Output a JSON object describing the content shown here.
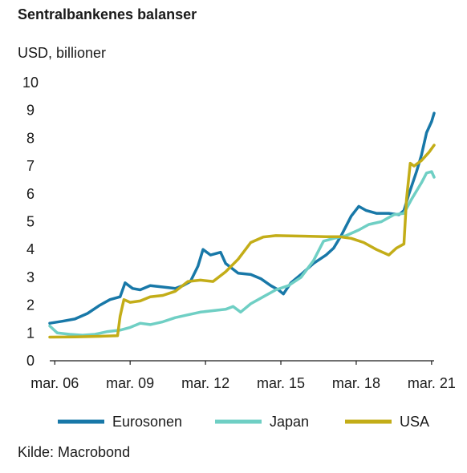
{
  "chart_data": {
    "type": "line",
    "title": "Sentralbankenes balanser",
    "ylabel": "USD, billioner",
    "source": "Kilde: Macrobond",
    "xlim": [
      2006.0,
      2021.3
    ],
    "ylim": [
      0,
      10
    ],
    "y_ticks": [
      0,
      1,
      2,
      3,
      4,
      5,
      6,
      7,
      8,
      9,
      10
    ],
    "x_ticks": [
      {
        "label": "mar. 06",
        "x": 2006.2
      },
      {
        "label": "mar. 09",
        "x": 2009.2
      },
      {
        "label": "mar. 12",
        "x": 2012.2
      },
      {
        "label": "mar. 15",
        "x": 2015.2
      },
      {
        "label": "mar. 18",
        "x": 2018.2
      },
      {
        "label": "mar. 21",
        "x": 2021.2
      }
    ],
    "legend_position": "bottom",
    "series": [
      {
        "name": "Eurosonen",
        "color": "#1878a8",
        "points": [
          [
            2006.0,
            1.35
          ],
          [
            2006.5,
            1.42
          ],
          [
            2007.0,
            1.5
          ],
          [
            2007.5,
            1.7
          ],
          [
            2008.0,
            2.0
          ],
          [
            2008.4,
            2.2
          ],
          [
            2008.8,
            2.3
          ],
          [
            2009.0,
            2.8
          ],
          [
            2009.3,
            2.6
          ],
          [
            2009.6,
            2.55
          ],
          [
            2010.0,
            2.7
          ],
          [
            2010.5,
            2.65
          ],
          [
            2011.0,
            2.6
          ],
          [
            2011.3,
            2.7
          ],
          [
            2011.6,
            2.85
          ],
          [
            2011.9,
            3.4
          ],
          [
            2012.1,
            4.0
          ],
          [
            2012.4,
            3.8
          ],
          [
            2012.8,
            3.9
          ],
          [
            2013.0,
            3.5
          ],
          [
            2013.5,
            3.15
          ],
          [
            2014.0,
            3.1
          ],
          [
            2014.4,
            2.95
          ],
          [
            2014.8,
            2.7
          ],
          [
            2015.1,
            2.55
          ],
          [
            2015.3,
            2.4
          ],
          [
            2015.6,
            2.8
          ],
          [
            2016.0,
            3.1
          ],
          [
            2016.5,
            3.5
          ],
          [
            2017.0,
            3.8
          ],
          [
            2017.3,
            4.05
          ],
          [
            2017.6,
            4.5
          ],
          [
            2018.0,
            5.2
          ],
          [
            2018.3,
            5.55
          ],
          [
            2018.6,
            5.4
          ],
          [
            2019.0,
            5.3
          ],
          [
            2019.5,
            5.3
          ],
          [
            2019.9,
            5.25
          ],
          [
            2020.1,
            5.4
          ],
          [
            2020.3,
            6.0
          ],
          [
            2020.6,
            6.8
          ],
          [
            2020.8,
            7.4
          ],
          [
            2021.0,
            8.2
          ],
          [
            2021.2,
            8.6
          ],
          [
            2021.3,
            8.9
          ]
        ]
      },
      {
        "name": "Japan",
        "color": "#6fcfc4",
        "points": [
          [
            2006.0,
            1.25
          ],
          [
            2006.3,
            1.0
          ],
          [
            2006.8,
            0.95
          ],
          [
            2007.3,
            0.92
          ],
          [
            2007.8,
            0.95
          ],
          [
            2008.3,
            1.05
          ],
          [
            2008.8,
            1.1
          ],
          [
            2009.2,
            1.2
          ],
          [
            2009.6,
            1.35
          ],
          [
            2010.0,
            1.3
          ],
          [
            2010.5,
            1.4
          ],
          [
            2011.0,
            1.55
          ],
          [
            2011.5,
            1.65
          ],
          [
            2012.0,
            1.75
          ],
          [
            2012.5,
            1.8
          ],
          [
            2013.0,
            1.85
          ],
          [
            2013.3,
            1.95
          ],
          [
            2013.6,
            1.75
          ],
          [
            2014.0,
            2.05
          ],
          [
            2014.5,
            2.3
          ],
          [
            2015.0,
            2.55
          ],
          [
            2015.5,
            2.7
          ],
          [
            2016.0,
            3.0
          ],
          [
            2016.5,
            3.6
          ],
          [
            2016.9,
            4.3
          ],
          [
            2017.3,
            4.4
          ],
          [
            2017.8,
            4.5
          ],
          [
            2018.3,
            4.7
          ],
          [
            2018.7,
            4.9
          ],
          [
            2019.2,
            5.0
          ],
          [
            2019.7,
            5.25
          ],
          [
            2020.1,
            5.3
          ],
          [
            2020.4,
            5.8
          ],
          [
            2020.8,
            6.4
          ],
          [
            2021.0,
            6.75
          ],
          [
            2021.2,
            6.8
          ],
          [
            2021.3,
            6.6
          ]
        ]
      },
      {
        "name": "USA",
        "color": "#c3ad18",
        "points": [
          [
            2006.0,
            0.85
          ],
          [
            2007.0,
            0.86
          ],
          [
            2008.0,
            0.88
          ],
          [
            2008.7,
            0.9
          ],
          [
            2008.8,
            1.6
          ],
          [
            2008.95,
            2.2
          ],
          [
            2009.2,
            2.1
          ],
          [
            2009.6,
            2.15
          ],
          [
            2010.0,
            2.3
          ],
          [
            2010.5,
            2.35
          ],
          [
            2011.0,
            2.5
          ],
          [
            2011.5,
            2.85
          ],
          [
            2012.0,
            2.9
          ],
          [
            2012.5,
            2.85
          ],
          [
            2013.0,
            3.2
          ],
          [
            2013.5,
            3.65
          ],
          [
            2014.0,
            4.25
          ],
          [
            2014.5,
            4.45
          ],
          [
            2015.0,
            4.5
          ],
          [
            2016.0,
            4.48
          ],
          [
            2017.0,
            4.46
          ],
          [
            2017.5,
            4.46
          ],
          [
            2018.0,
            4.4
          ],
          [
            2018.5,
            4.25
          ],
          [
            2019.0,
            4.0
          ],
          [
            2019.5,
            3.8
          ],
          [
            2019.8,
            4.05
          ],
          [
            2020.1,
            4.2
          ],
          [
            2020.2,
            5.8
          ],
          [
            2020.35,
            7.1
          ],
          [
            2020.5,
            7.0
          ],
          [
            2020.8,
            7.2
          ],
          [
            2021.1,
            7.5
          ],
          [
            2021.3,
            7.75
          ]
        ]
      }
    ]
  }
}
